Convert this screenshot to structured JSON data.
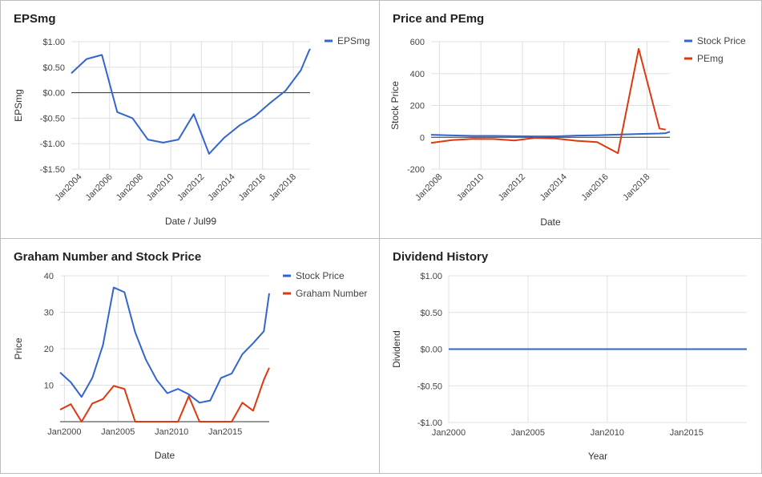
{
  "chart_data": [
    {
      "id": "eps",
      "type": "line",
      "title": "EPSmg",
      "xlabel": "Date / Jul99",
      "ylabel": "EPSmg",
      "xlim": [
        2003.5,
        2019.1
      ],
      "ylim": [
        -1.5,
        1.0
      ],
      "yticks": [
        1.0,
        0.5,
        0.0,
        -0.5,
        -1.0,
        -1.5
      ],
      "ytick_labels": [
        "$1.00",
        "$0.50",
        "$0.00",
        "-$0.50",
        "-$1.00",
        "-$1.50"
      ],
      "xticks": [
        2004,
        2006,
        2008,
        2010,
        2012,
        2014,
        2016,
        2018
      ],
      "xtick_labels": [
        "Jan2004",
        "Jan2006",
        "Jan2008",
        "Jan2010",
        "Jan2012",
        "Jan2014",
        "Jan2016",
        "Jan2018"
      ],
      "zero_line": 0,
      "legend_position": "top-right",
      "series": [
        {
          "name": "EPSmg",
          "color": "#3366cc",
          "x": [
            2003.5,
            2004.5,
            2005.5,
            2006.5,
            2007.5,
            2008.5,
            2009.5,
            2010.5,
            2011.5,
            2012.5,
            2013.5,
            2014.5,
            2015.5,
            2016.5,
            2017.5,
            2018.5,
            2019.0,
            2019.1
          ],
          "y": [
            0.38,
            0.66,
            0.74,
            -0.38,
            -0.5,
            -0.92,
            -0.98,
            -0.92,
            -0.42,
            -1.2,
            -0.88,
            -0.64,
            -0.46,
            -0.2,
            0.04,
            0.44,
            0.8,
            0.86
          ]
        }
      ]
    },
    {
      "id": "price_pe",
      "type": "line",
      "title": "Price and PEmg",
      "xlabel": "Date",
      "ylabel": "Stock Price",
      "xlim": [
        2007.6,
        2019.1
      ],
      "ylim": [
        -200,
        600
      ],
      "yticks": [
        600,
        400,
        200,
        0,
        -200
      ],
      "ytick_labels": [
        "600",
        "400",
        "200",
        "0",
        "-200"
      ],
      "xticks": [
        2008,
        2010,
        2012,
        2014,
        2016,
        2018
      ],
      "xtick_labels": [
        "Jan2008",
        "Jan2010",
        "Jan2012",
        "Jan2014",
        "Jan2016",
        "Jan2018"
      ],
      "zero_line": 0,
      "legend_position": "top-right",
      "series": [
        {
          "name": "Stock Price",
          "color": "#3366cc",
          "x": [
            2007.6,
            2008.6,
            2009.6,
            2010.6,
            2011.6,
            2012.6,
            2013.6,
            2014.6,
            2015.6,
            2016.6,
            2017.6,
            2018.6,
            2018.9,
            2019.1
          ],
          "y": [
            16,
            12,
            9,
            9,
            7,
            6,
            6,
            11,
            13,
            17,
            21,
            24,
            26,
            35
          ]
        },
        {
          "name": "PEmg",
          "color": "#dc3912",
          "x": [
            2007.6,
            2008.6,
            2009.6,
            2010.6,
            2011.6,
            2012.6,
            2013.6,
            2014.6,
            2015.6,
            2016.6,
            2017.6,
            2018.6,
            2018.9
          ],
          "y": [
            -35,
            -18,
            -10,
            -11,
            -20,
            -4,
            -8,
            -22,
            -30,
            -100,
            555,
            55,
            48
          ]
        }
      ]
    },
    {
      "id": "graham",
      "type": "line",
      "title": "Graham Number and Stock Price",
      "xlabel": "Date",
      "ylabel": "Price",
      "xlim": [
        1999.6,
        2019.1
      ],
      "ylim": [
        0,
        40
      ],
      "yticks": [
        40,
        30,
        20,
        10
      ],
      "ytick_labels": [
        "40",
        "30",
        "20",
        "10"
      ],
      "xticks": [
        2000,
        2005,
        2010,
        2015
      ],
      "xtick_labels": [
        "Jan2000",
        "Jan2005",
        "Jan2010",
        "Jan2015"
      ],
      "zero_line": 0,
      "legend_position": "top-right",
      "series": [
        {
          "name": "Stock Price",
          "color": "#3366cc",
          "x": [
            1999.6,
            2000.6,
            2001.6,
            2002.6,
            2003.6,
            2004.6,
            2005.6,
            2006.6,
            2007.6,
            2008.6,
            2009.6,
            2010.6,
            2011.6,
            2012.6,
            2013.6,
            2014.6,
            2015.6,
            2016.6,
            2017.6,
            2018.6,
            2019.1
          ],
          "y": [
            13.5,
            10.8,
            6.8,
            12.0,
            21.0,
            36.8,
            35.5,
            24.5,
            17.0,
            11.5,
            7.8,
            9.0,
            7.5,
            5.2,
            5.8,
            12.0,
            13.2,
            18.5,
            21.5,
            24.8,
            35.2
          ]
        },
        {
          "name": "Graham Number",
          "color": "#dc3912",
          "x": [
            1999.6,
            2000.6,
            2001.6,
            2002.6,
            2003.6,
            2004.6,
            2005.6,
            2006.6,
            2007.6,
            2008.6,
            2009.6,
            2010.6,
            2011.6,
            2012.6,
            2013.6,
            2014.6,
            2015.6,
            2016.6,
            2017.6,
            2018.6,
            2019.1
          ],
          "y": [
            3.3,
            4.8,
            0.0,
            5.0,
            6.2,
            9.8,
            9.0,
            0.0,
            0.0,
            0.0,
            0.0,
            0.0,
            7.0,
            0.0,
            0.0,
            0.0,
            0.0,
            5.2,
            3.0,
            11.5,
            14.8
          ]
        }
      ]
    },
    {
      "id": "dividend",
      "type": "line",
      "title": "Dividend History",
      "xlabel": "Year",
      "ylabel": "Dividend",
      "xlim": [
        2000,
        2018.8
      ],
      "ylim": [
        -1.0,
        1.0
      ],
      "yticks": [
        1.0,
        0.5,
        0.0,
        -0.5,
        -1.0
      ],
      "ytick_labels": [
        "$1.00",
        "$0.50",
        "$0.00",
        "-$0.50",
        "-$1.00"
      ],
      "xticks": [
        2000,
        2005,
        2010,
        2015
      ],
      "xtick_labels": [
        "Jan2000",
        "Jan2005",
        "Jan2010",
        "Jan2015"
      ],
      "legend_position": "none",
      "series": [
        {
          "name": "",
          "color": "#3366cc",
          "x": [
            2000,
            2018.8
          ],
          "y": [
            0.0,
            0.0
          ]
        }
      ]
    }
  ]
}
